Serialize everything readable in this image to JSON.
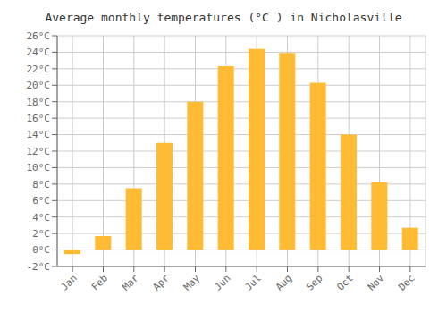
{
  "chart_data": {
    "type": "bar",
    "title": "Average monthly temperatures (°C ) in Nicholasville",
    "categories": [
      "Jan",
      "Feb",
      "Mar",
      "Apr",
      "May",
      "Jun",
      "Jul",
      "Aug",
      "Sep",
      "Oct",
      "Nov",
      "Dec"
    ],
    "values": [
      -0.5,
      1.7,
      7.5,
      13.0,
      18.0,
      22.3,
      24.4,
      23.9,
      20.3,
      14.0,
      8.2,
      2.7
    ],
    "color": "#FFBB33",
    "ylim": [
      -2,
      26
    ],
    "yticks": [
      {
        "value": -2,
        "label": "-2°C"
      },
      {
        "value": 0,
        "label": "0°C"
      },
      {
        "value": 2,
        "label": "2°C"
      },
      {
        "value": 4,
        "label": "4°C"
      },
      {
        "value": 6,
        "label": "6°C"
      },
      {
        "value": 8,
        "label": "8°C"
      },
      {
        "value": 10,
        "label": "10°C"
      },
      {
        "value": 12,
        "label": "12°C"
      },
      {
        "value": 14,
        "label": "14°C"
      },
      {
        "value": 16,
        "label": "16°C"
      },
      {
        "value": 18,
        "label": "18°C"
      },
      {
        "value": 20,
        "label": "20°C"
      },
      {
        "value": 22,
        "label": "22°C"
      },
      {
        "value": 24,
        "label": "24°C"
      },
      {
        "value": 26,
        "label": "26°C"
      }
    ],
    "grid": true
  }
}
